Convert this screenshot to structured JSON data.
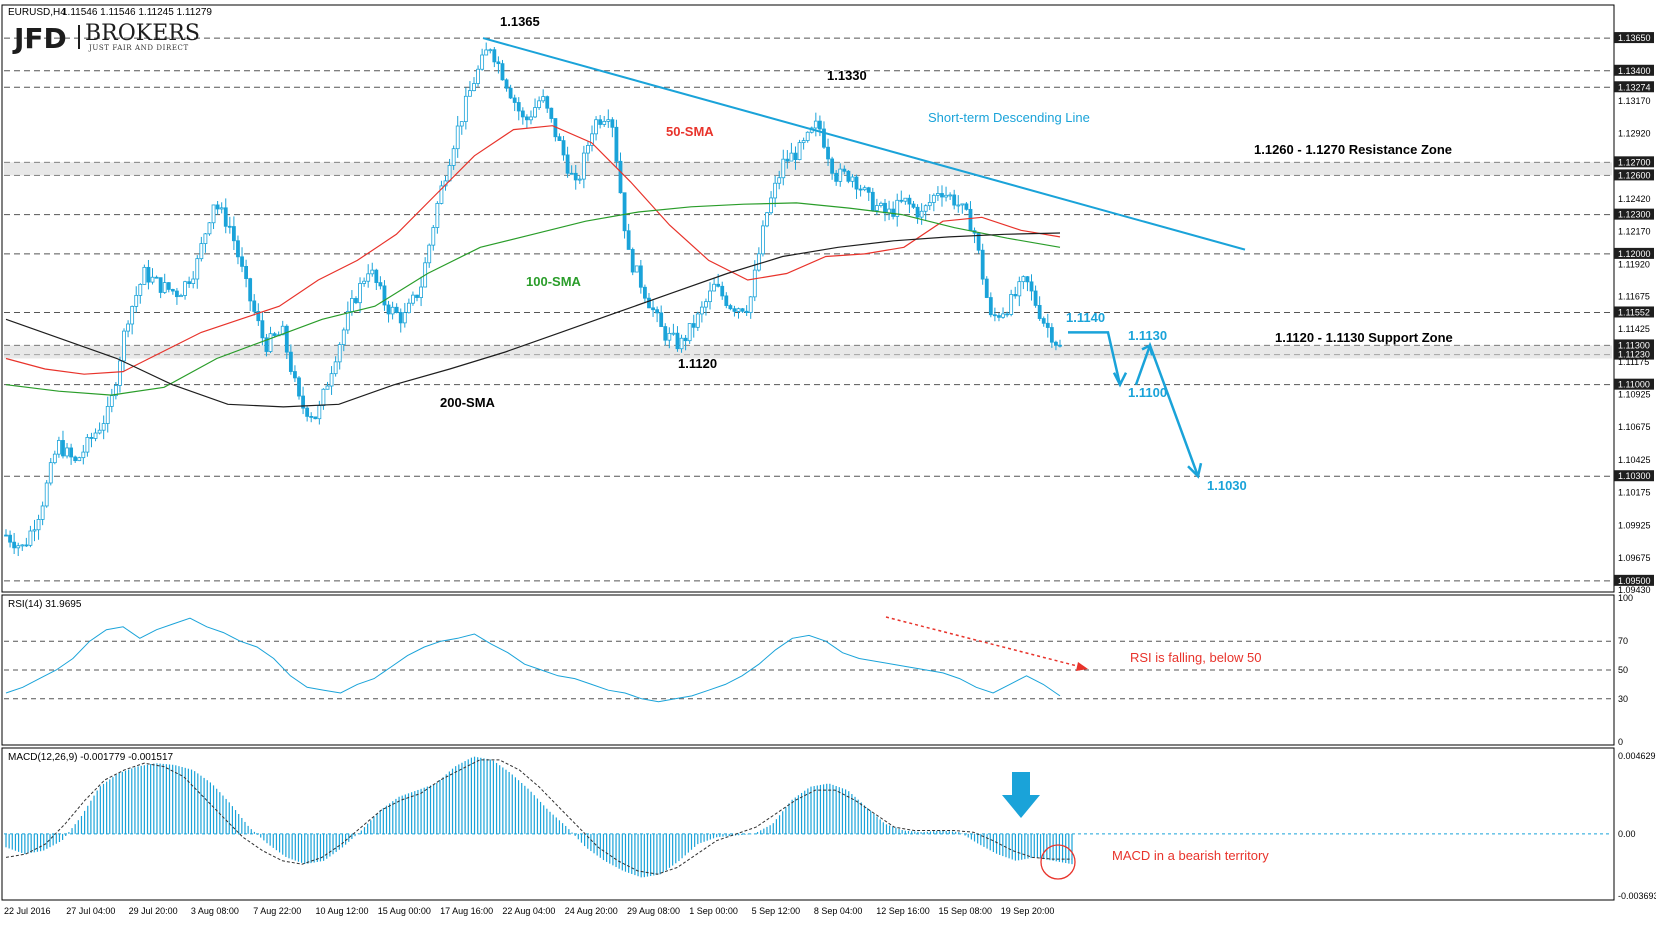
{
  "header": {
    "symbol": "EURUSD,H4",
    "ohlc": "1.11546 1.11546 1.11245 1.11279"
  },
  "logo": {
    "brand": "JFD",
    "brand2": "BROKERS",
    "tagline": "JUST FAIR AND DIRECT"
  },
  "colors": {
    "sma50": "#e8332b",
    "sma100": "#2a9d2a",
    "sma200": "#1e1e1e",
    "candle": "#1aa3d9",
    "trendline": "#1aa3d9",
    "rsi": "#1aa3d9",
    "macd": "#1aa3d9",
    "note_red": "#e8332b"
  },
  "chart_data": [
    {
      "type": "candlestick",
      "ylim": [
        1.0943,
        1.1388
      ],
      "price_axis_ticks": [
        "1.13650",
        "1.13400",
        "1.13274",
        "1.13170",
        "1.12920",
        "1.12700",
        "1.12600",
        "1.12420",
        "1.12300",
        "1.12170",
        "1.12000",
        "1.11920",
        "1.11675",
        "1.11552",
        "1.11425",
        "1.11300",
        "1.11230",
        "1.11175",
        "1.11000",
        "1.10925",
        "1.10675",
        "1.10425",
        "1.10300",
        "1.10175",
        "1.09925",
        "1.09675",
        "1.09500",
        "1.09430"
      ],
      "horizontal_levels": [
        1.1365,
        1.134,
        1.13274,
        1.127,
        1.126,
        1.123,
        1.12,
        1.11552,
        1.113,
        1.1123,
        1.11,
        1.103,
        1.095
      ],
      "zones": [
        {
          "from": 1.126,
          "to": 1.127,
          "label": "1.1260 - 1.1270 Resistance Zone"
        },
        {
          "from": 1.112,
          "to": 1.113,
          "label": "1.1120 - 1.1130 Support Zone"
        }
      ],
      "time_axis": [
        "22 Jul 2016",
        "27 Jul 04:00",
        "29 Jul 20:00",
        "3 Aug 08:00",
        "7 Aug 22:00",
        "10 Aug 12:00",
        "15 Aug 00:00",
        "17 Aug 16:00",
        "22 Aug 04:00",
        "24 Aug 20:00",
        "29 Aug 08:00",
        "1 Sep 00:00",
        "5 Sep 12:00",
        "8 Sep 04:00",
        "12 Sep 16:00",
        "15 Sep 08:00",
        "19 Sep 20:00"
      ],
      "close_path": [
        1.0985,
        1.0975,
        1.1005,
        1.1055,
        1.104,
        1.106,
        1.108,
        1.115,
        1.1185,
        1.1175,
        1.117,
        1.119,
        1.124,
        1.122,
        1.117,
        1.113,
        1.114,
        1.1085,
        1.1075,
        1.112,
        1.116,
        1.119,
        1.116,
        1.115,
        1.1175,
        1.124,
        1.129,
        1.133,
        1.136,
        1.133,
        1.13,
        1.132,
        1.1285,
        1.125,
        1.13,
        1.131,
        1.12,
        1.117,
        1.114,
        1.113,
        1.115,
        1.1175,
        1.116,
        1.116,
        1.123,
        1.127,
        1.128,
        1.13,
        1.126,
        1.126,
        1.124,
        1.123,
        1.124,
        1.123,
        1.125,
        1.124,
        1.122,
        1.115,
        1.116,
        1.118,
        1.115,
        1.1128
      ],
      "series": [
        {
          "name": "50-SMA",
          "values": [
            1.112,
            1.1112,
            1.1108,
            1.111,
            1.1125,
            1.114,
            1.115,
            1.116,
            1.118,
            1.1195,
            1.1215,
            1.1245,
            1.1275,
            1.1295,
            1.1298,
            1.1285,
            1.1255,
            1.1222,
            1.1195,
            1.118,
            1.1185,
            1.1198,
            1.12,
            1.1205,
            1.1225,
            1.1228,
            1.1218,
            1.1213
          ]
        },
        {
          "name": "100-SMA",
          "values": [
            1.11,
            1.1095,
            1.1092,
            1.1098,
            1.112,
            1.1135,
            1.115,
            1.116,
            1.1185,
            1.1205,
            1.1215,
            1.1225,
            1.1232,
            1.1236,
            1.1238,
            1.1239,
            1.1235,
            1.123,
            1.122,
            1.1212,
            1.1205
          ]
        },
        {
          "name": "200-SMA",
          "values": [
            1.115,
            1.1135,
            1.112,
            1.11,
            1.1085,
            1.1083,
            1.1085,
            1.11,
            1.1112,
            1.1125,
            1.114,
            1.1155,
            1.117,
            1.1185,
            1.1198,
            1.1205,
            1.121,
            1.1213,
            1.1215,
            1.1216
          ]
        }
      ],
      "trendline": {
        "label": "Short-term Descending Line",
        "from": 1.1365,
        "to": 1.123
      },
      "annotations": [
        {
          "text": "1.1365"
        },
        {
          "text": "1.1330"
        },
        {
          "text": "1.1120"
        },
        {
          "text": "50-SMA"
        },
        {
          "text": "100-SMA"
        },
        {
          "text": "200-SMA"
        },
        {
          "text": "1.1140"
        },
        {
          "text": "1.1130"
        },
        {
          "text": "1.1100"
        },
        {
          "text": "1.1030"
        }
      ],
      "projection": [
        1.114,
        1.11,
        1.113,
        1.103
      ]
    },
    {
      "type": "line",
      "title": "RSI(14) 31.9695",
      "ylim": [
        0,
        100
      ],
      "levels": [
        30,
        50,
        70
      ],
      "axis_ticks": [
        "100",
        "70",
        "50",
        "30",
        "0"
      ],
      "values": [
        34,
        38,
        44,
        50,
        58,
        70,
        78,
        80,
        72,
        78,
        82,
        86,
        80,
        76,
        70,
        66,
        58,
        46,
        38,
        36,
        34,
        40,
        44,
        52,
        60,
        66,
        70,
        72,
        75,
        68,
        62,
        54,
        50,
        46,
        44,
        40,
        36,
        34,
        30,
        28,
        30,
        32,
        36,
        40,
        46,
        54,
        64,
        72,
        74,
        70,
        62,
        58,
        56,
        54,
        52,
        50,
        48,
        44,
        38,
        34,
        40,
        46,
        40,
        32
      ],
      "annotation": "RSI is falling, below 50"
    },
    {
      "type": "bar",
      "title": "MACD(12,26,9) -0.001779 -0.001517",
      "ylim": [
        -0.003693,
        0.004629
      ],
      "axis_ticks": [
        "0.004629",
        "0.00",
        "-0.003693"
      ],
      "values": [
        -0.0008,
        -0.0012,
        -0.001,
        -0.0004,
        0.001,
        0.0028,
        0.0036,
        0.004,
        0.0042,
        0.0041,
        0.0038,
        0.003,
        0.0018,
        0.0004,
        -0.0006,
        -0.0014,
        -0.0018,
        -0.0016,
        -0.0008,
        0.0002,
        0.0014,
        0.0022,
        0.0026,
        0.003,
        0.004,
        0.0046,
        0.0044,
        0.0036,
        0.0026,
        0.0014,
        0.0004,
        -0.0008,
        -0.0016,
        -0.0022,
        -0.0026,
        -0.0024,
        -0.0016,
        -0.0006,
        -0.0002,
        -0.0001,
        0.0,
        0.0006,
        0.002,
        0.0028,
        0.003,
        0.0026,
        0.0016,
        0.0006,
        0.0002,
        0.0001,
        0.0002,
        0.0001,
        -0.0006,
        -0.0012,
        -0.0016,
        -0.0014,
        -0.0016,
        -0.0018
      ],
      "signal": [
        -0.0014,
        -0.0012,
        -0.0006,
        0.0006,
        0.002,
        0.0032,
        0.0038,
        0.0042,
        0.004,
        0.0034,
        0.0022,
        0.001,
        -0.0002,
        -0.001,
        -0.0016,
        -0.0018,
        -0.0014,
        -0.0006,
        0.0004,
        0.0014,
        0.002,
        0.0024,
        0.0032,
        0.0038,
        0.0044,
        0.0044,
        0.0038,
        0.0028,
        0.0016,
        0.0004,
        -0.0008,
        -0.0016,
        -0.0022,
        -0.0024,
        -0.002,
        -0.0012,
        -0.0004,
        0.0,
        0.0004,
        0.0012,
        0.002,
        0.0026,
        0.0026,
        0.002,
        0.0012,
        0.0004,
        0.0002,
        0.0002,
        0.0002,
        0.0001,
        -0.0004,
        -0.001,
        -0.0014,
        -0.0015,
        -0.0015
      ],
      "annotation": "MACD in a bearish territory"
    }
  ]
}
